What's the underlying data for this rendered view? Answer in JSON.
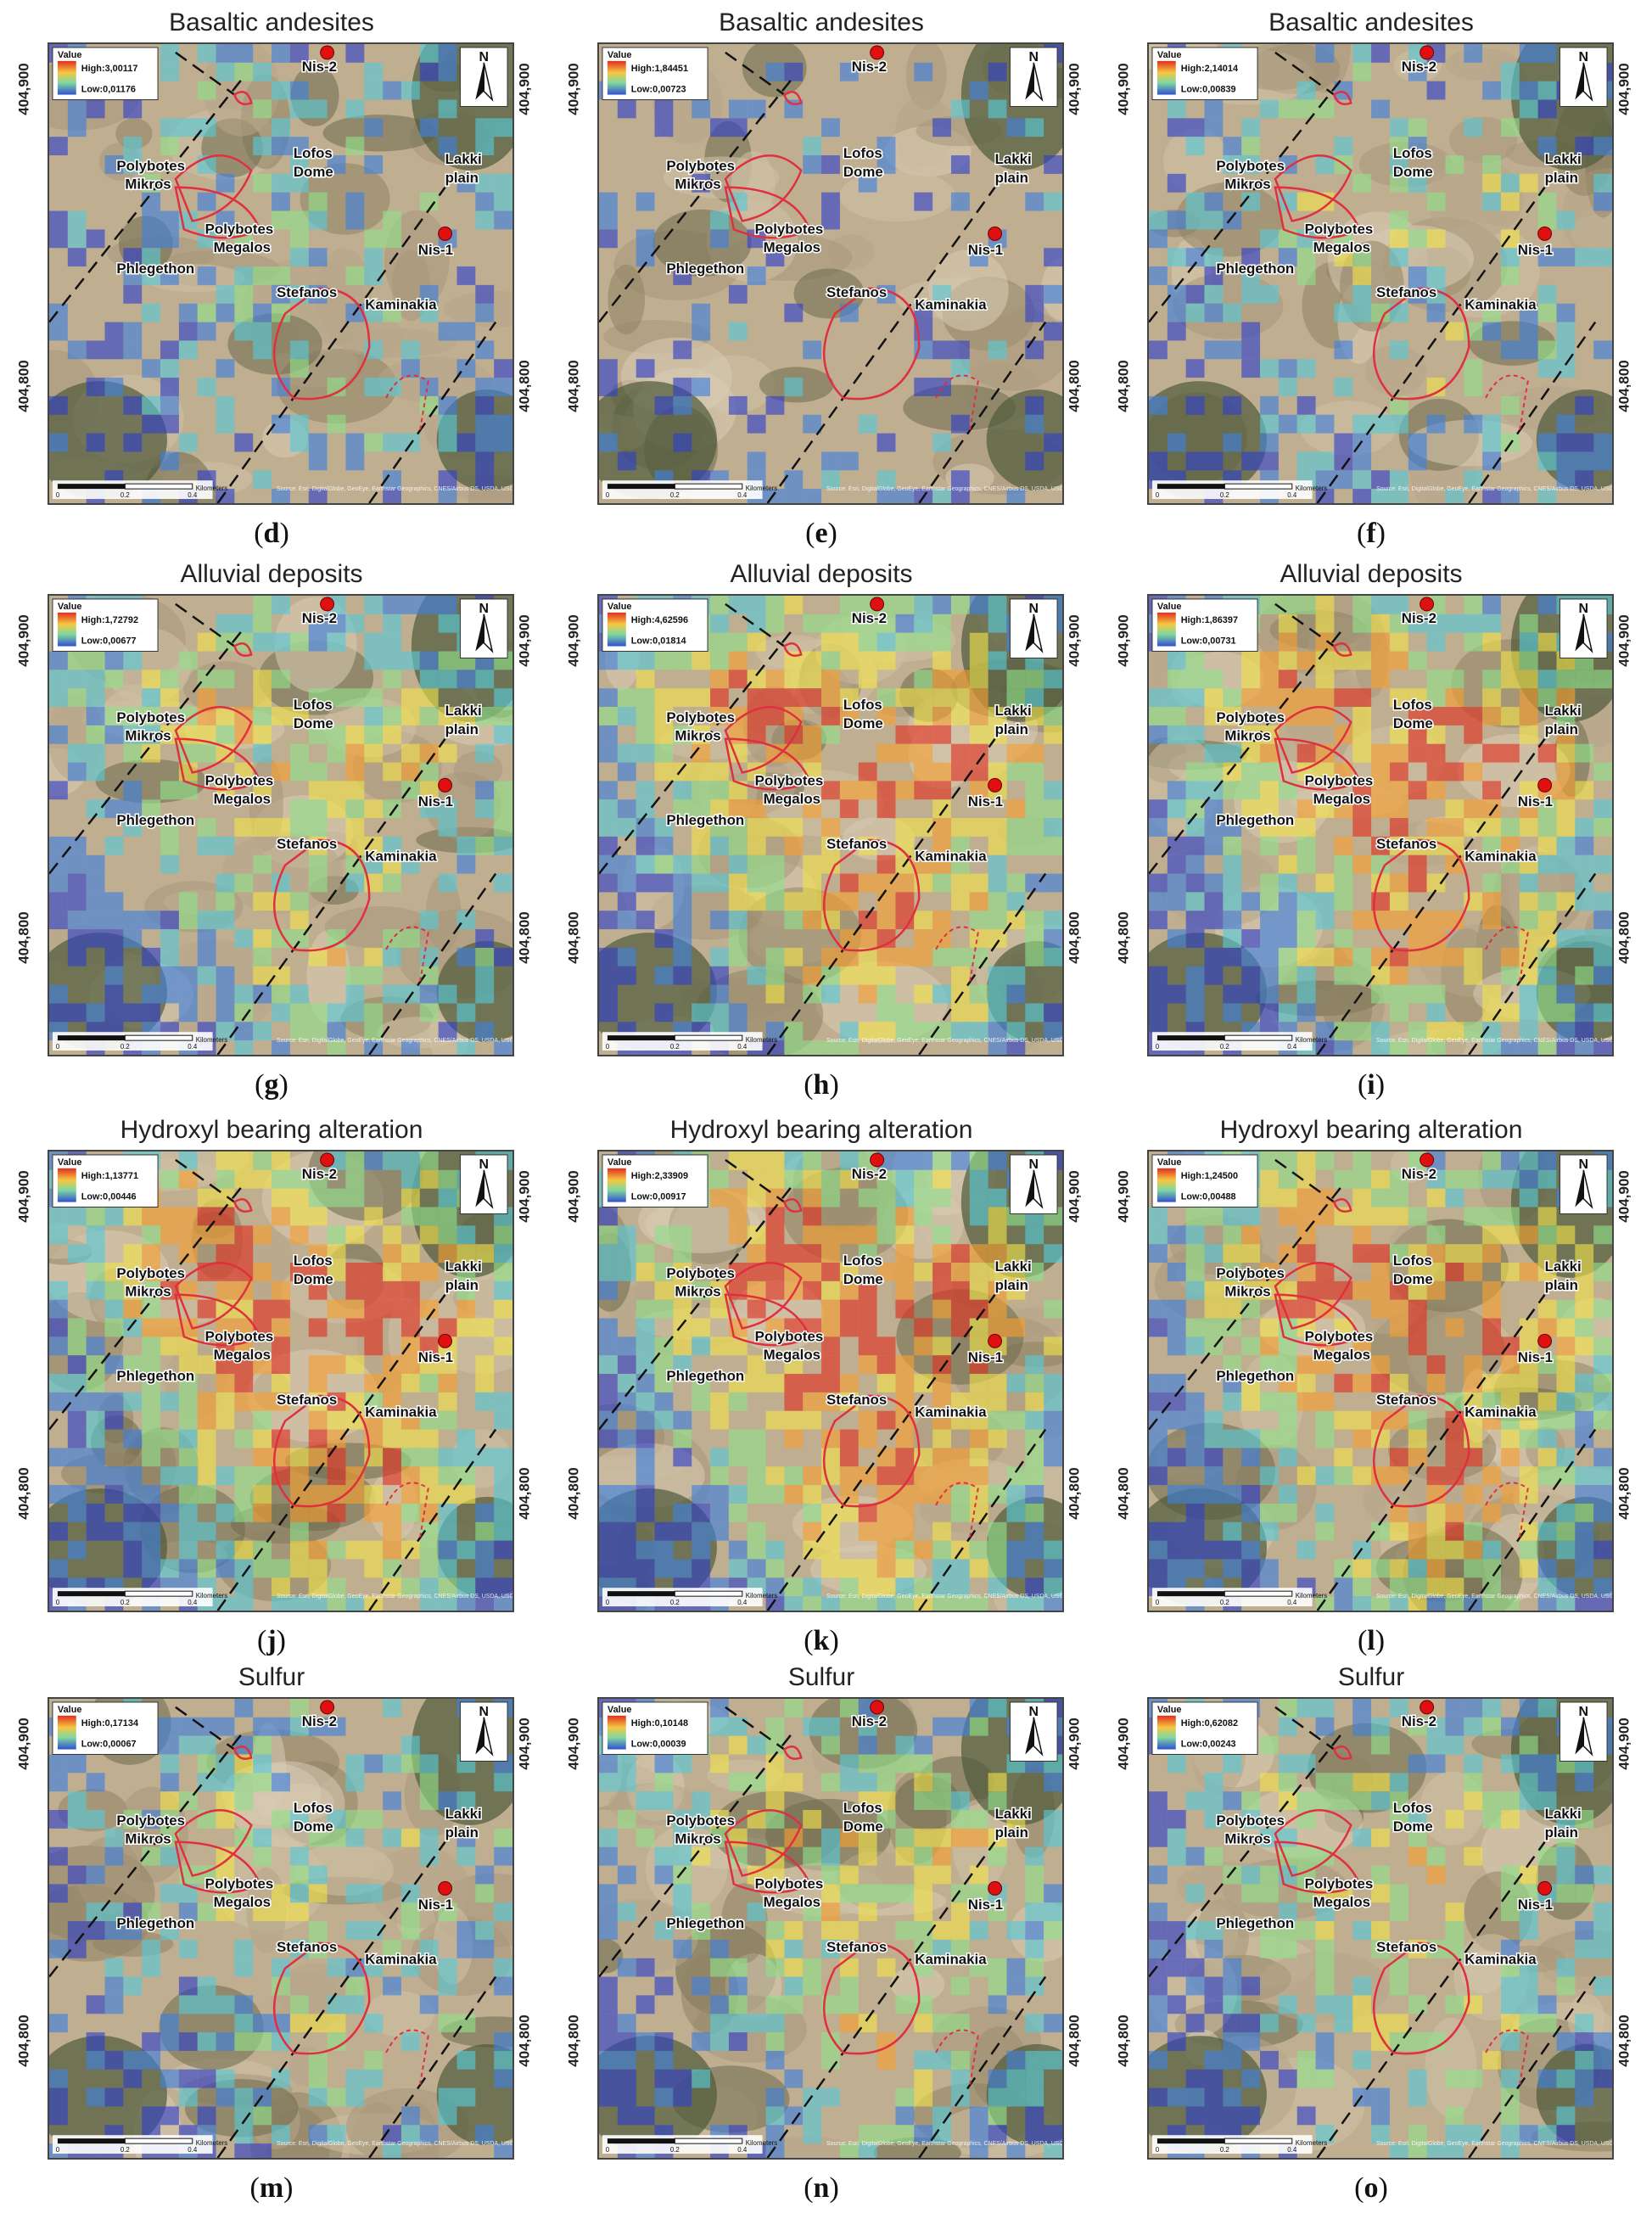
{
  "axis_labels": {
    "north": "404,900",
    "south": "404,800"
  },
  "north_arrow": "N",
  "legend_heading": "Value",
  "scalebar": {
    "ticks": [
      "0",
      "0.2",
      "0.4"
    ],
    "unit": "Kilometers"
  },
  "attribution": "Source: Esri, DigitalGlobe, GeoEye, Earthstar Geographics, CNES/Airbus DS, USDA, USGS, AeroGRID, IGN, and the GIS User Community",
  "place_labels": {
    "nis2": "Nis-2",
    "nis1": "Nis-1",
    "lofos": [
      "Lofos",
      "Dome"
    ],
    "lakki": [
      "Lakki",
      "plain"
    ],
    "polymik": [
      "Polybotes",
      "Mikros"
    ],
    "polymeg": [
      "Polybotes",
      "Megalos"
    ],
    "phleg": "Phlegethon",
    "stef": "Stefanos",
    "kamin": "Kaminakia"
  },
  "colors": {
    "high": "#e03020",
    "mid_high": "#f5c842",
    "mid": "#7fd8a0",
    "low": "#3050d0",
    "marker": "#e01010",
    "rim": "#e03040"
  },
  "panels": [
    {
      "id": "d",
      "title": "Basaltic andesites",
      "high": "High:3,00117",
      "low": "Low:0,01176",
      "intensity": 0.35
    },
    {
      "id": "e",
      "title": "Basaltic andesites",
      "high": "High:1,84451",
      "low": "Low:0,00723",
      "intensity": 0.12
    },
    {
      "id": "f",
      "title": "Basaltic andesites",
      "high": "High:2,14014",
      "low": "Low:0,00839",
      "intensity": 0.4
    },
    {
      "id": "g",
      "title": "Alluvial deposits",
      "high": "High:1,72792",
      "low": "Low:0,00677",
      "intensity": 0.6
    },
    {
      "id": "h",
      "title": "Alluvial deposits",
      "high": "High:4,62596",
      "low": "Low:0,01814",
      "intensity": 0.85
    },
    {
      "id": "i",
      "title": "Alluvial deposits",
      "high": "High:1,86397",
      "low": "Low:0,00731",
      "intensity": 0.85
    },
    {
      "id": "j",
      "title": "Hydroxyl bearing alteration",
      "high": "High:1,13771",
      "low": "Low:0,00446",
      "intensity": 0.9
    },
    {
      "id": "k",
      "title": "Hydroxyl bearing alteration",
      "high": "High:2,33909",
      "low": "Low:0,00917",
      "intensity": 0.9
    },
    {
      "id": "l",
      "title": "Hydroxyl bearing alteration",
      "high": "High:1,24500",
      "low": "Low:0,00488",
      "intensity": 0.85
    },
    {
      "id": "m",
      "title": "Sulfur",
      "high": "High:0,17134",
      "low": "Low:0,00067",
      "intensity": 0.45
    },
    {
      "id": "n",
      "title": "Sulfur",
      "high": "High:0,10148",
      "low": "Low:0,00039",
      "intensity": 0.6
    },
    {
      "id": "o",
      "title": "Sulfur",
      "high": "High:0,62082",
      "low": "Low:0,00243",
      "intensity": 0.55
    }
  ]
}
